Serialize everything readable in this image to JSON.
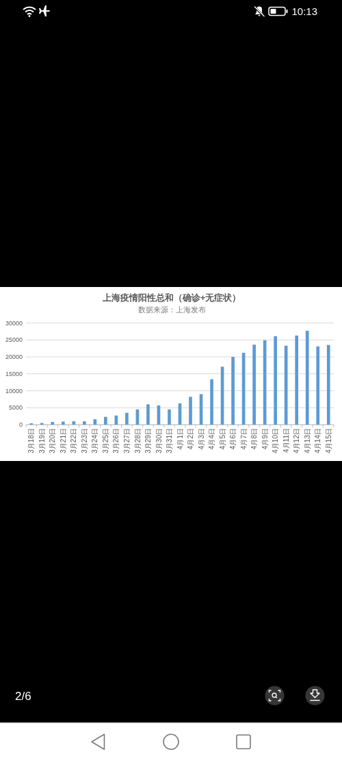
{
  "chart_data": {
    "type": "bar",
    "title": "上海疫情阳性总和（确诊+无症状）",
    "subtitle": "数据来源：上海发布",
    "categories": [
      "3月18日",
      "3月19日",
      "3月20日",
      "3月21日",
      "3月22日",
      "3月23日",
      "3月24日",
      "3月25日",
      "3月26日",
      "3月27日",
      "3月28日",
      "3月29日",
      "3月30日",
      "3月31日",
      "4月1日",
      "4月2日",
      "4月3日",
      "4月4日",
      "4月5日",
      "4月6日",
      "4月7日",
      "4月8日",
      "4月9日",
      "4月10日",
      "4月11日",
      "4月12日",
      "4月13日",
      "4月14日",
      "4月15日"
    ],
    "values": [
      400,
      500,
      800,
      900,
      1000,
      1000,
      1600,
      2300,
      2700,
      3500,
      4500,
      6000,
      5700,
      4500,
      6300,
      8200,
      9000,
      13400,
      17100,
      20000,
      21200,
      23600,
      24900,
      26100,
      23300,
      26300,
      27700,
      23100,
      23500
    ],
    "color": "#5b9bd5",
    "ylim": [
      0,
      30000
    ],
    "yticks": [
      0,
      5000,
      10000,
      15000,
      20000,
      25000,
      30000
    ],
    "grid": "y",
    "annotations": [
      "10:13",
      "2/6"
    ]
  }
}
